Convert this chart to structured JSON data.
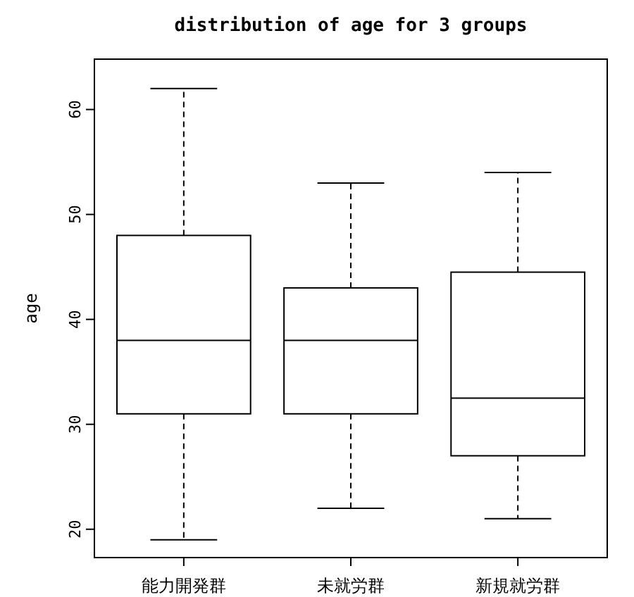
{
  "chart_data": {
    "type": "box",
    "title": "distribution of age for 3 groups",
    "ylabel": "age",
    "categories": [
      "能力開発群",
      "未就労群",
      "新規就労群"
    ],
    "boxes": [
      {
        "low": 19,
        "q1": 31,
        "median": 38,
        "q3": 48,
        "high": 62
      },
      {
        "low": 22,
        "q1": 31,
        "median": 38,
        "q3": 43,
        "high": 53
      },
      {
        "low": 21,
        "q1": 27,
        "median": 32.5,
        "q3": 44.5,
        "high": 54
      }
    ],
    "ylim": [
      17.3,
      64.8
    ],
    "yticks": [
      20,
      30,
      40,
      50,
      60
    ]
  }
}
